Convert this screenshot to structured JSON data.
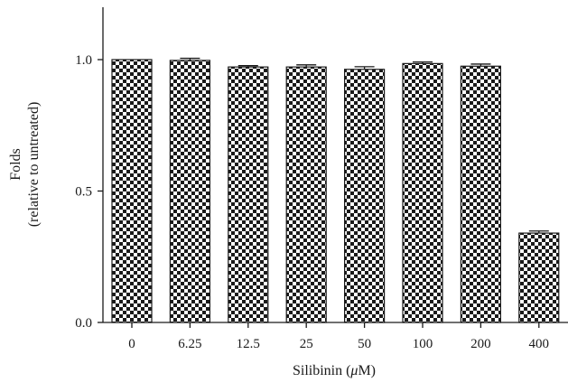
{
  "chart_data": {
    "type": "bar",
    "categories": [
      "0",
      "6.25",
      "12.5",
      "25",
      "50",
      "100",
      "200",
      "400"
    ],
    "values": [
      1.0,
      0.997,
      0.972,
      0.972,
      0.963,
      0.985,
      0.975,
      0.34
    ],
    "errors": [
      0.0,
      0.008,
      0.005,
      0.008,
      0.01,
      0.006,
      0.008,
      0.008
    ],
    "ylim": [
      0,
      1.2
    ],
    "yticks": [
      "0.0",
      "0.5",
      "1.0"
    ],
    "ytick_values": [
      0,
      0.5,
      1.0
    ],
    "xlabel_prefix": "Silibinin (",
    "xlabel_mu": "μ",
    "xlabel_suffix": "M)",
    "ylabel_line1": "Folds",
    "ylabel_line2": "(relative to untreated)",
    "bar_pattern": "checkerboard",
    "colors": {
      "fill_dark": "#1a1a1a",
      "fill_light": "#ffffff"
    }
  }
}
